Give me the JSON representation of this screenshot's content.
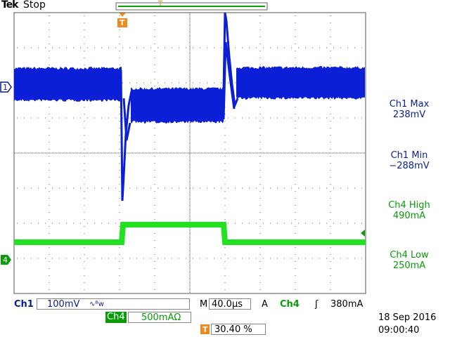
{
  "header": {
    "brand": "Tek",
    "status": "Stop"
  },
  "markers": {
    "ch1": "1",
    "ch4": "4",
    "trigger": "T"
  },
  "measurements": [
    {
      "label": "Ch1 Max",
      "value": "238mV"
    },
    {
      "label": "Ch1 Min",
      "value": "−288mV"
    },
    {
      "label": "Ch4 High",
      "value": "490mA"
    },
    {
      "label": "Ch4 Low",
      "value": "250mA"
    }
  ],
  "footer": {
    "ch1": "Ch1",
    "ch1_scale": "100mV",
    "ch1_coupling": "∿ᴮw",
    "horizontal": "M",
    "timebase": "40.0µs",
    "trigger_mode": "A",
    "trigger_source": "Ch4",
    "trigger_slope": "ʃ",
    "trigger_level": "380mA",
    "ch4": "Ch4",
    "ch4_scale": "500mAΩ",
    "trigger_position": "30.40 %",
    "date": "18 Sep 2016",
    "time": "09:00:40"
  }
}
